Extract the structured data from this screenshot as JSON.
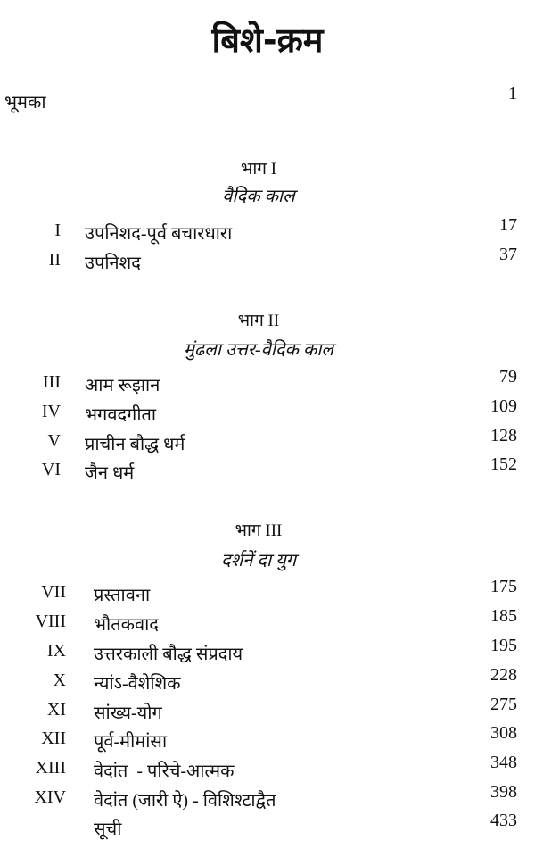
{
  "title": "बिशे-क्रम",
  "intro": {
    "label": "भूमका",
    "page": "1"
  },
  "parts": [
    {
      "label": "भाग I",
      "subtitle": "वैदिक काल",
      "chapters": [
        {
          "num": "I",
          "title": "उपनिशद-पूर्व बचारधारा",
          "page": "17"
        },
        {
          "num": "II",
          "title": "उपनिशद",
          "page": "37"
        }
      ]
    },
    {
      "label": "भाग II",
      "subtitle": "मुंढला उत्तर-वैदिक काल",
      "chapters": [
        {
          "num": "III",
          "title": "आम रूझान",
          "page": "79"
        },
        {
          "num": "IV",
          "title": "भगवदगीता",
          "page": "109"
        },
        {
          "num": "V",
          "title": "प्राचीन बौद्ध धर्म",
          "page": "128"
        },
        {
          "num": "VI",
          "title": "जैन धर्म",
          "page": "152"
        }
      ]
    },
    {
      "label": "भाग III",
      "subtitle": "दर्शनें दा युग",
      "chapters": [
        {
          "num": "VII",
          "title": "प्रस्तावना",
          "page": "175"
        },
        {
          "num": "VIII",
          "title": "भौतकवाद",
          "page": "185"
        },
        {
          "num": "IX",
          "title": "उत्तरकाली बौद्ध संप्रदाय",
          "page": "195"
        },
        {
          "num": "X",
          "title": "न्यांऽ-वैशेशिक",
          "page": "228"
        },
        {
          "num": "XI",
          "title": "सांख्य-योग",
          "page": "275"
        },
        {
          "num": "XII",
          "title": "पूर्व-मीमांसा",
          "page": "308"
        },
        {
          "num": "XIII",
          "title": "वेदांत  - परिचे-आत्मक",
          "page": "348"
        },
        {
          "num": "XIV",
          "title": "वेदांत (जारी ऐ) - विशिश्टाद्वैत",
          "page": "398"
        }
      ]
    }
  ],
  "index": {
    "label": "सूची",
    "page": "433"
  }
}
